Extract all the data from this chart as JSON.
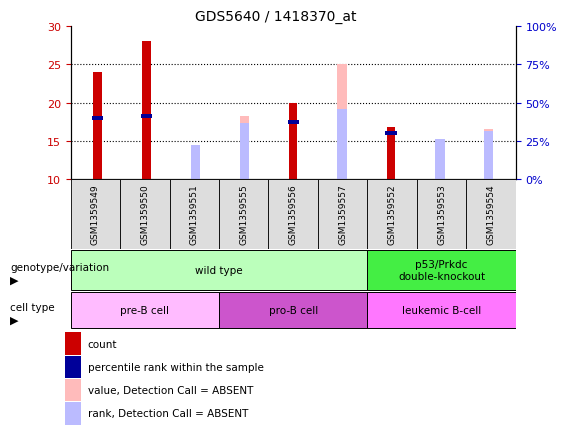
{
  "title": "GDS5640 / 1418370_at",
  "samples": [
    "GSM1359549",
    "GSM1359550",
    "GSM1359551",
    "GSM1359555",
    "GSM1359556",
    "GSM1359557",
    "GSM1359552",
    "GSM1359553",
    "GSM1359554"
  ],
  "count_values": [
    24.0,
    28.0,
    null,
    null,
    20.0,
    null,
    16.8,
    null,
    null
  ],
  "percentile_values": [
    18.0,
    18.2,
    null,
    null,
    17.5,
    null,
    16.0,
    null,
    null
  ],
  "absent_value_values": [
    null,
    null,
    10.2,
    18.3,
    null,
    25.0,
    null,
    10.8,
    16.5
  ],
  "absent_rank_values": [
    null,
    null,
    14.5,
    17.3,
    null,
    19.2,
    null,
    15.2,
    16.3
  ],
  "ylim": [
    10,
    30
  ],
  "yticks": [
    10,
    15,
    20,
    25,
    30
  ],
  "y2tick_labels": [
    "0%",
    "25%",
    "50%",
    "75%",
    "100%"
  ],
  "y2ticks": [
    10,
    15,
    20,
    25,
    30
  ],
  "genotype_groups": [
    {
      "label": "wild type",
      "start": 0,
      "end": 6,
      "color": "#bbffbb"
    },
    {
      "label": "p53/Prkdc\ndouble-knockout",
      "start": 6,
      "end": 9,
      "color": "#44ee44"
    }
  ],
  "cell_type_groups": [
    {
      "label": "pre-B cell",
      "start": 0,
      "end": 3,
      "color": "#ffbbff"
    },
    {
      "label": "pro-B cell",
      "start": 3,
      "end": 6,
      "color": "#cc55cc"
    },
    {
      "label": "leukemic B-cell",
      "start": 6,
      "end": 9,
      "color": "#ff77ff"
    }
  ],
  "count_color": "#cc0000",
  "percentile_color": "#000099",
  "absent_value_color": "#ffbbbb",
  "absent_rank_color": "#bbbbff",
  "axis_color_left": "#cc0000",
  "axis_color_right": "#0000cc",
  "legend_items": [
    {
      "color": "#cc0000",
      "label": "count"
    },
    {
      "color": "#000099",
      "label": "percentile rank within the sample"
    },
    {
      "color": "#ffbbbb",
      "label": "value, Detection Call = ABSENT"
    },
    {
      "color": "#bbbbff",
      "label": "rank, Detection Call = ABSENT"
    }
  ]
}
